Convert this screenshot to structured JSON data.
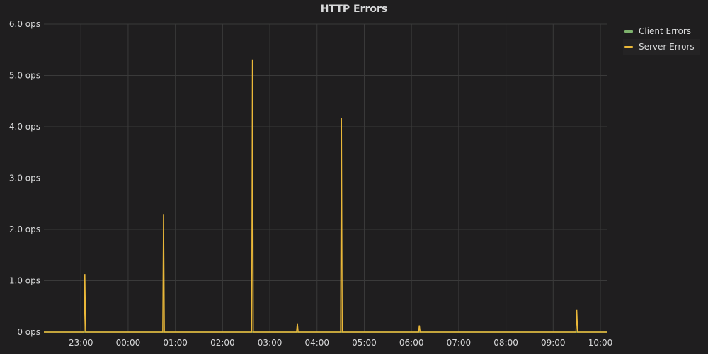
{
  "panel": {
    "title": "HTTP Errors"
  },
  "chart_data": {
    "type": "line",
    "title": "HTTP Errors",
    "xlabel": "",
    "ylabel": "",
    "x_ticks": [
      "23:00",
      "00:00",
      "01:00",
      "02:00",
      "03:00",
      "04:00",
      "05:00",
      "06:00",
      "07:00",
      "08:00",
      "09:00",
      "10:00"
    ],
    "y_ticks": [
      "0 ops",
      "1.0 ops",
      "2.0 ops",
      "3.0 ops",
      "4.0 ops",
      "5.0 ops",
      "6.0 ops"
    ],
    "x_range": [
      "22:13",
      "10:09"
    ],
    "ylim": [
      0,
      6
    ],
    "grid": true,
    "legend_position": "right",
    "series": [
      {
        "name": "Client Errors",
        "color": "#7eb26d",
        "points": [
          {
            "t": "22:13",
            "v": 0
          },
          {
            "t": "10:09",
            "v": 0
          }
        ]
      },
      {
        "name": "Server Errors",
        "color": "#eab839",
        "points": [
          {
            "t": "22:13",
            "v": 0
          },
          {
            "t": "23:04",
            "v": 0
          },
          {
            "t": "23:05",
            "v": 1.13
          },
          {
            "t": "23:06",
            "v": 0
          },
          {
            "t": "00:44",
            "v": 0
          },
          {
            "t": "00:45",
            "v": 2.3
          },
          {
            "t": "00:46",
            "v": 0
          },
          {
            "t": "02:37",
            "v": 0
          },
          {
            "t": "02:38",
            "v": 5.3
          },
          {
            "t": "02:39",
            "v": 0
          },
          {
            "t": "03:34",
            "v": 0
          },
          {
            "t": "03:35",
            "v": 0.17
          },
          {
            "t": "03:36",
            "v": 0
          },
          {
            "t": "04:30",
            "v": 0
          },
          {
            "t": "04:31",
            "v": 4.17
          },
          {
            "t": "04:32",
            "v": 0
          },
          {
            "t": "06:09",
            "v": 0
          },
          {
            "t": "06:10",
            "v": 0.13
          },
          {
            "t": "06:11",
            "v": 0
          },
          {
            "t": "09:29",
            "v": 0
          },
          {
            "t": "09:30",
            "v": 0.43
          },
          {
            "t": "09:31",
            "v": 0
          },
          {
            "t": "10:09",
            "v": 0
          }
        ]
      }
    ]
  }
}
